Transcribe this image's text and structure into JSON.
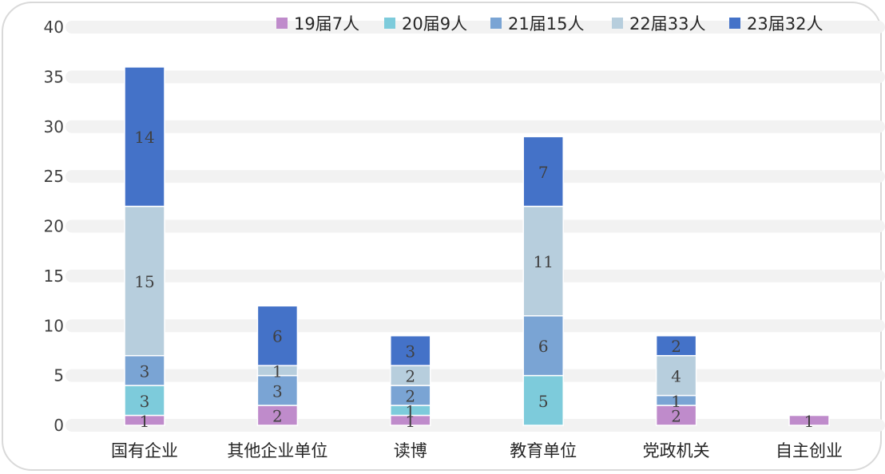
{
  "chart_data": {
    "type": "bar",
    "stacked": true,
    "title": "",
    "xlabel": "",
    "ylabel": "",
    "categories": [
      "国有企业",
      "其他企业单位",
      "读博",
      "教育单位",
      "党政机关",
      "自主创业"
    ],
    "ylim": [
      0,
      40
    ],
    "yticks": [
      0,
      5,
      10,
      15,
      20,
      25,
      30,
      35,
      40
    ],
    "grid": true,
    "legend_position": "top-right",
    "series": [
      {
        "name": "19届7人",
        "color": "#bf8bcb",
        "values": [
          1,
          2,
          1,
          null,
          2,
          1
        ]
      },
      {
        "name": "20届9人",
        "color": "#7dcbdb",
        "values": [
          3,
          null,
          1,
          5,
          null,
          null
        ]
      },
      {
        "name": "21届15人",
        "color": "#7aa4d4",
        "values": [
          3,
          3,
          2,
          6,
          1,
          null
        ]
      },
      {
        "name": "22届33人",
        "color": "#b7cedd",
        "values": [
          15,
          1,
          2,
          11,
          4,
          null
        ]
      },
      {
        "name": "23届32人",
        "color": "#4472c8",
        "values": [
          14,
          6,
          3,
          7,
          2,
          null
        ]
      }
    ]
  }
}
